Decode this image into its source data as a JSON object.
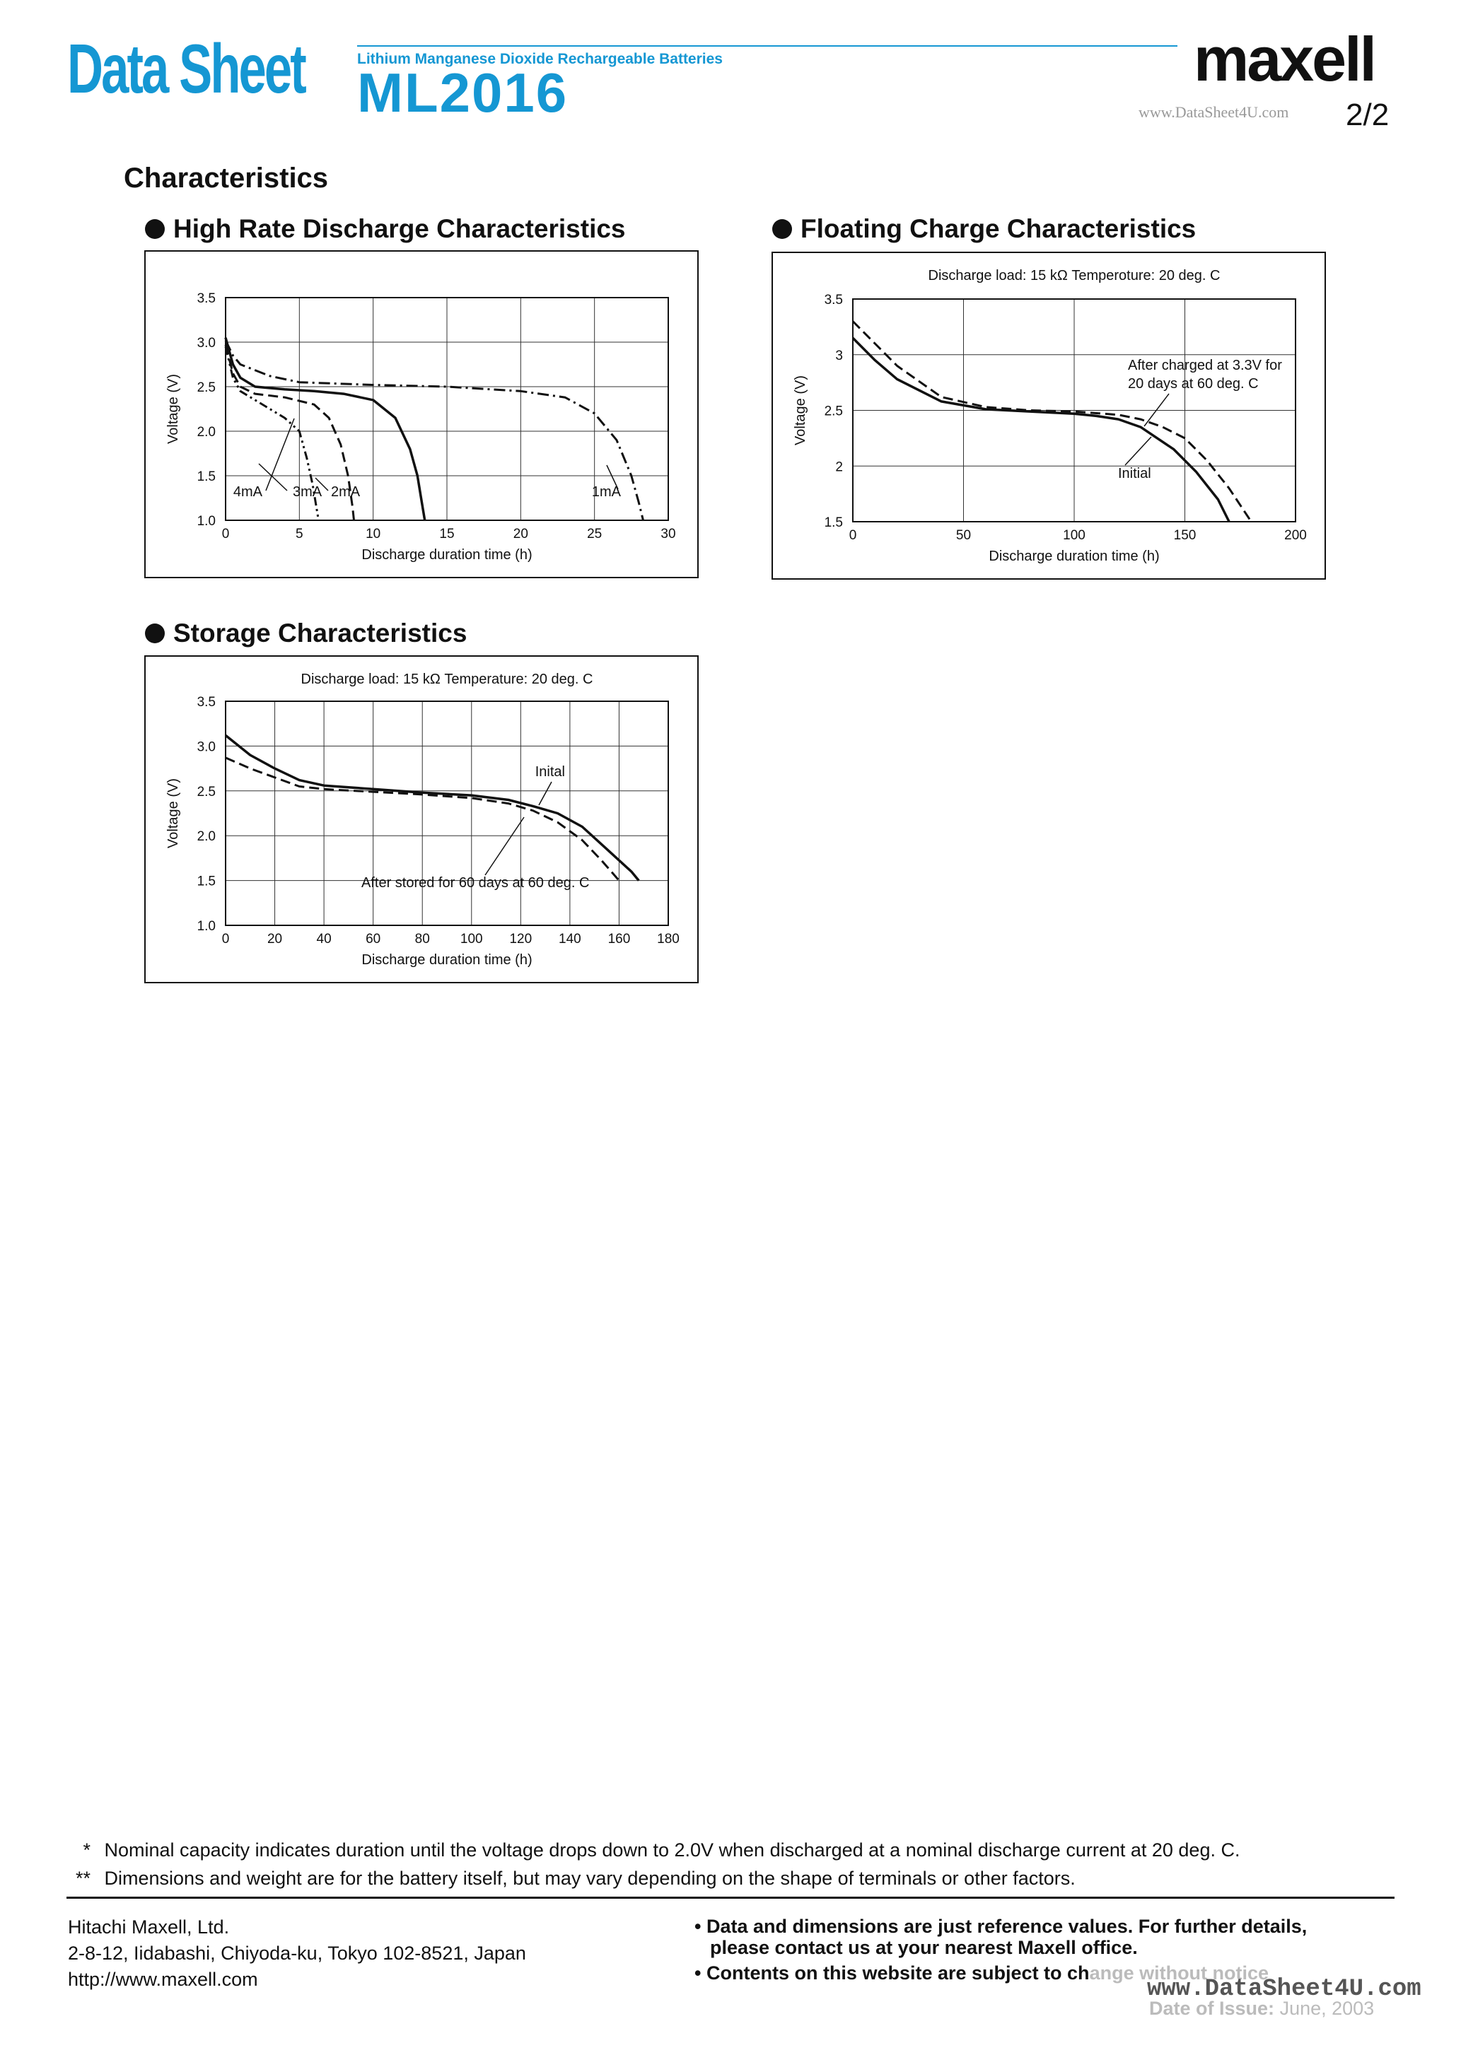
{
  "header": {
    "doc_type": "Data Sheet",
    "product_line": "Lithium Manganese Dioxide Rechargeable Batteries",
    "model": "ML2016",
    "brand": "maxell",
    "watermark": "www.DataSheet4U.com",
    "page": "2/2"
  },
  "section_title": "Characteristics",
  "charts": {
    "high_rate": {
      "title": "High Rate Discharge Characteristics"
    },
    "floating": {
      "title": "Floating Charge Characteristics"
    },
    "storage": {
      "title": "Storage Characteristics"
    }
  },
  "chart_data": [
    {
      "id": "high_rate",
      "type": "line",
      "title": "High Rate Discharge Characteristics",
      "xlabel": "Discharge duration time (h)",
      "ylabel": "Voltage (V)",
      "xlim": [
        0,
        30
      ],
      "ylim": [
        1.0,
        3.5
      ],
      "xticks": [
        "0",
        "5",
        "10",
        "15",
        "20",
        "25",
        "30"
      ],
      "yticks": [
        "1.0",
        "1.5",
        "2.0",
        "2.5",
        "3.0",
        "3.5"
      ],
      "grid": true,
      "series": [
        {
          "name": "4mA",
          "style": "dash-dot-dot",
          "x": [
            0,
            0.5,
            1,
            2,
            3,
            4,
            5,
            5.5,
            5.9,
            6.2,
            6.3
          ],
          "y": [
            2.95,
            2.6,
            2.45,
            2.35,
            2.25,
            2.15,
            2.0,
            1.7,
            1.4,
            1.1,
            1.0
          ]
        },
        {
          "name": "3mA",
          "style": "dash",
          "x": [
            0,
            0.5,
            1,
            2,
            4,
            6,
            7,
            7.8,
            8.3,
            8.6,
            8.7
          ],
          "y": [
            2.97,
            2.65,
            2.5,
            2.42,
            2.38,
            2.3,
            2.15,
            1.85,
            1.5,
            1.15,
            1.0
          ]
        },
        {
          "name": "2mA",
          "style": "solid",
          "x": [
            0,
            0.5,
            1,
            2,
            4,
            6,
            8,
            10,
            11.5,
            12.5,
            13,
            13.3,
            13.5
          ],
          "y": [
            3.05,
            2.75,
            2.6,
            2.5,
            2.47,
            2.45,
            2.42,
            2.35,
            2.15,
            1.8,
            1.5,
            1.2,
            1.0
          ]
        },
        {
          "name": "1mA",
          "style": "dash-dot",
          "x": [
            0,
            0.5,
            1,
            3,
            5,
            10,
            15,
            20,
            23,
            25,
            26.5,
            27.5,
            28,
            28.3
          ],
          "y": [
            3.02,
            2.85,
            2.75,
            2.62,
            2.55,
            2.52,
            2.5,
            2.45,
            2.38,
            2.2,
            1.9,
            1.5,
            1.2,
            1.0
          ]
        }
      ],
      "annotations": [
        "4mA",
        "3mA",
        "2mA",
        "1mA"
      ]
    },
    {
      "id": "floating",
      "type": "line",
      "title": "Floating Charge Characteristics",
      "subtitle": "Discharge load: 15 kΩ   Temperoture: 20 deg. C",
      "xlabel": "Discharge duration time (h)",
      "ylabel": "Voltage (V)",
      "xlim": [
        0,
        200
      ],
      "ylim": [
        1.5,
        3.5
      ],
      "xticks": [
        "0",
        "50",
        "100",
        "150",
        "200"
      ],
      "yticks": [
        "1.5",
        "2",
        "2.5",
        "3",
        "3.5"
      ],
      "grid": true,
      "series": [
        {
          "name": "Initial",
          "style": "solid",
          "x": [
            0,
            10,
            20,
            40,
            60,
            80,
            100,
            110,
            120,
            130,
            145,
            155,
            165,
            170
          ],
          "y": [
            3.15,
            2.95,
            2.78,
            2.58,
            2.51,
            2.49,
            2.47,
            2.45,
            2.42,
            2.35,
            2.15,
            1.95,
            1.7,
            1.5
          ]
        },
        {
          "name": "After charged at 3.3V for 20 days at 60 deg. C",
          "style": "dash",
          "x": [
            0,
            10,
            20,
            40,
            60,
            80,
            100,
            120,
            130,
            140,
            150,
            160,
            170,
            180
          ],
          "y": [
            3.3,
            3.1,
            2.9,
            2.62,
            2.53,
            2.5,
            2.49,
            2.46,
            2.42,
            2.35,
            2.25,
            2.05,
            1.8,
            1.5
          ]
        }
      ],
      "annotations": [
        "After charged at 3.3V for",
        "20 days at 60 deg. C",
        "Initial"
      ]
    },
    {
      "id": "storage",
      "type": "line",
      "title": "Storage Characteristics",
      "subtitle": "Discharge load: 15 kΩ   Temperature: 20 deg. C",
      "xlabel": "Discharge duration time (h)",
      "ylabel": "Voltage (V)",
      "xlim": [
        0,
        180
      ],
      "ylim": [
        1.0,
        3.5
      ],
      "xticks": [
        "0",
        "20",
        "40",
        "60",
        "80",
        "100",
        "120",
        "140",
        "160",
        "180"
      ],
      "yticks": [
        "1.0",
        "1.5",
        "2.0",
        "2.5",
        "3.0",
        "3.5"
      ],
      "grid": true,
      "series": [
        {
          "name": "Inital",
          "style": "solid",
          "x": [
            0,
            10,
            20,
            30,
            40,
            60,
            80,
            100,
            115,
            125,
            135,
            145,
            155,
            165,
            168
          ],
          "y": [
            3.12,
            2.9,
            2.75,
            2.62,
            2.56,
            2.52,
            2.48,
            2.45,
            2.4,
            2.33,
            2.25,
            2.1,
            1.85,
            1.6,
            1.5
          ]
        },
        {
          "name": "After stored for 60 days at 60 deg. C",
          "style": "dash",
          "x": [
            0,
            10,
            20,
            30,
            40,
            60,
            80,
            100,
            115,
            125,
            135,
            145,
            153,
            160
          ],
          "y": [
            2.87,
            2.75,
            2.65,
            2.55,
            2.52,
            2.49,
            2.46,
            2.42,
            2.36,
            2.28,
            2.15,
            1.95,
            1.72,
            1.5
          ]
        }
      ],
      "annotations": [
        "Inital",
        "After stored for 60 days at 60 deg. C"
      ]
    }
  ],
  "footnotes": [
    {
      "mark": "*",
      "text": "Nominal capacity indicates duration until the voltage drops down to 2.0V when discharged at a nominal discharge current at 20 deg. C."
    },
    {
      "mark": "**",
      "text": "Dimensions and weight are for the battery itself, but may vary depending on the shape of terminals or other factors."
    }
  ],
  "company": {
    "name": "Hitachi Maxell, Ltd.",
    "address": "2-8-12, Iidabashi, Chiyoda-ku, Tokyo 102-8521, Japan",
    "url": "http://www.maxell.com"
  },
  "notices": {
    "line1": "Data and dimensions are just reference values. For further details,",
    "line2": "please contact us at your nearest Maxell office.",
    "line3a": "Contents on this website are subject to ch",
    "line3b": "ange without notice"
  },
  "issue": {
    "label": "Date of Issue:",
    "value": "June, 2003"
  },
  "footer_watermark": "www.DataSheet4U.com"
}
